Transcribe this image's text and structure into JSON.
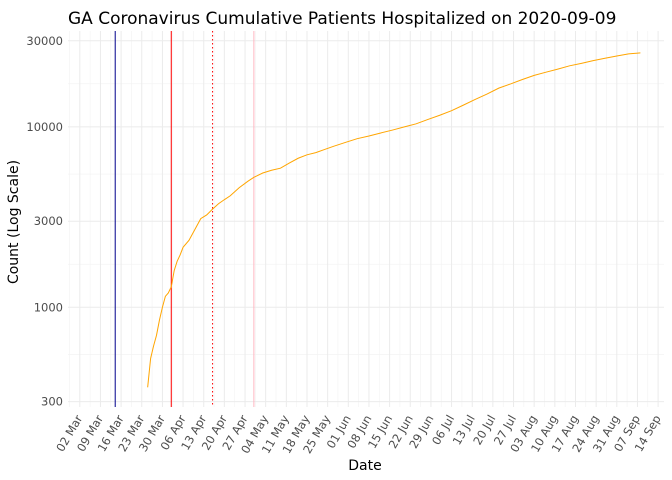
{
  "chart_data": {
    "type": "line",
    "title": "GA Coronavirus Cumulative Patients Hospitalized on 2020-09-09",
    "xlabel": "Date",
    "ylabel": "Count (Log Scale)",
    "y_scale": "log10",
    "ylim": [
      280,
      34000
    ],
    "xlim": [
      "2020-02-27",
      "2020-09-16"
    ],
    "grid": true,
    "x_ticks": [
      "2020-03-02",
      "2020-03-09",
      "2020-03-16",
      "2020-03-23",
      "2020-03-30",
      "2020-04-06",
      "2020-04-13",
      "2020-04-20",
      "2020-04-27",
      "2020-05-04",
      "2020-05-11",
      "2020-05-18",
      "2020-05-25",
      "2020-06-01",
      "2020-06-08",
      "2020-06-15",
      "2020-06-22",
      "2020-06-29",
      "2020-07-06",
      "2020-07-13",
      "2020-07-20",
      "2020-07-27",
      "2020-08-03",
      "2020-08-10",
      "2020-08-17",
      "2020-08-24",
      "2020-08-31",
      "2020-09-07",
      "2020-09-14"
    ],
    "x_tick_labels": [
      "02 Mar",
      "09 Mar",
      "16 Mar",
      "23 Mar",
      "30 Mar",
      "06 Apr",
      "13 Apr",
      "20 Apr",
      "27 Apr",
      "04 May",
      "11 May",
      "18 May",
      "25 May",
      "01 Jun",
      "08 Jun",
      "15 Jun",
      "22 Jun",
      "29 Jun",
      "06 Jul",
      "13 Jul",
      "20 Jul",
      "27 Jul",
      "03 Aug",
      "10 Aug",
      "17 Aug",
      "24 Aug",
      "31 Aug",
      "07 Sep",
      "14 Sep"
    ],
    "y_ticks": [
      300,
      1000,
      3000,
      10000,
      30000
    ],
    "y_tick_labels": [
      "300",
      "1000",
      "3000",
      "10000",
      "30000"
    ],
    "vlines": [
      {
        "date": "2020-03-14",
        "color": "#00008b",
        "style": "solid"
      },
      {
        "date": "2020-04-02",
        "color": "#ff0000",
        "style": "solid"
      },
      {
        "date": "2020-04-16",
        "color": "#ff0000",
        "style": "dotted"
      },
      {
        "date": "2020-04-30",
        "color": "#ffb6c1",
        "style": "solid"
      }
    ],
    "series": [
      {
        "color": "#ffa500",
        "x": [
          "2020-03-25",
          "2020-03-26",
          "2020-03-27",
          "2020-03-28",
          "2020-03-29",
          "2020-03-30",
          "2020-03-31",
          "2020-04-01",
          "2020-04-02",
          "2020-04-03",
          "2020-04-04",
          "2020-04-05",
          "2020-04-06",
          "2020-04-08",
          "2020-04-10",
          "2020-04-12",
          "2020-04-14",
          "2020-04-16",
          "2020-04-18",
          "2020-04-20",
          "2020-04-22",
          "2020-04-25",
          "2020-04-28",
          "2020-04-30",
          "2020-05-03",
          "2020-05-06",
          "2020-05-09",
          "2020-05-12",
          "2020-05-15",
          "2020-05-18",
          "2020-05-21",
          "2020-05-24",
          "2020-05-27",
          "2020-05-31",
          "2020-06-04",
          "2020-06-08",
          "2020-06-12",
          "2020-06-16",
          "2020-06-20",
          "2020-06-24",
          "2020-06-28",
          "2020-07-02",
          "2020-07-06",
          "2020-07-10",
          "2020-07-14",
          "2020-07-18",
          "2020-07-22",
          "2020-07-26",
          "2020-07-30",
          "2020-08-03",
          "2020-08-07",
          "2020-08-11",
          "2020-08-15",
          "2020-08-19",
          "2020-08-23",
          "2020-08-27",
          "2020-08-31",
          "2020-09-04",
          "2020-09-08"
        ],
        "values": [
          360,
          520,
          610,
          700,
          850,
          1000,
          1150,
          1200,
          1300,
          1600,
          1800,
          1950,
          2150,
          2350,
          2700,
          3100,
          3250,
          3500,
          3750,
          3950,
          4150,
          4600,
          5000,
          5250,
          5550,
          5750,
          5900,
          6300,
          6700,
          7000,
          7200,
          7500,
          7800,
          8200,
          8600,
          8900,
          9250,
          9600,
          10000,
          10400,
          11000,
          11600,
          12300,
          13200,
          14200,
          15200,
          16400,
          17300,
          18300,
          19300,
          20100,
          20900,
          21800,
          22500,
          23300,
          24000,
          24700,
          25400,
          25700
        ]
      }
    ]
  }
}
